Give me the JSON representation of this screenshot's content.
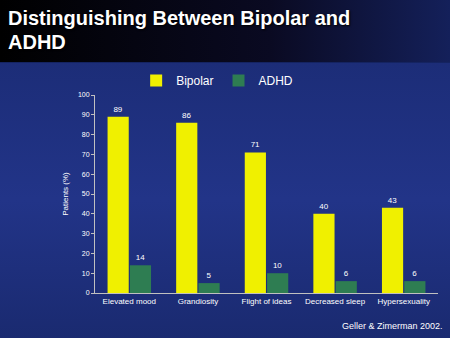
{
  "chart_data": {
    "type": "bar",
    "title": "Distinguishing Between Bipolar and ADHD",
    "y_label": "Patients (%)",
    "categories": [
      "Elevated mood",
      "Grandiosity",
      "Flight of ideas",
      "Decreased sleep",
      "Hypersexuality"
    ],
    "series": [
      {
        "name": "Bipolar",
        "color": "#f0f000",
        "values": [
          89,
          86,
          71,
          40,
          43
        ]
      },
      {
        "name": "ADHD",
        "color": "#2e7d52",
        "values": [
          14,
          5,
          10,
          6,
          6
        ]
      }
    ],
    "ylim": [
      0,
      100
    ],
    "yticks": [
      0,
      10,
      20,
      30,
      40,
      50,
      60,
      70,
      80,
      90,
      100
    ],
    "grid": false,
    "legend": "top",
    "data_labels": true,
    "annotations": [
      "Geller & Zimerman 2002."
    ]
  }
}
